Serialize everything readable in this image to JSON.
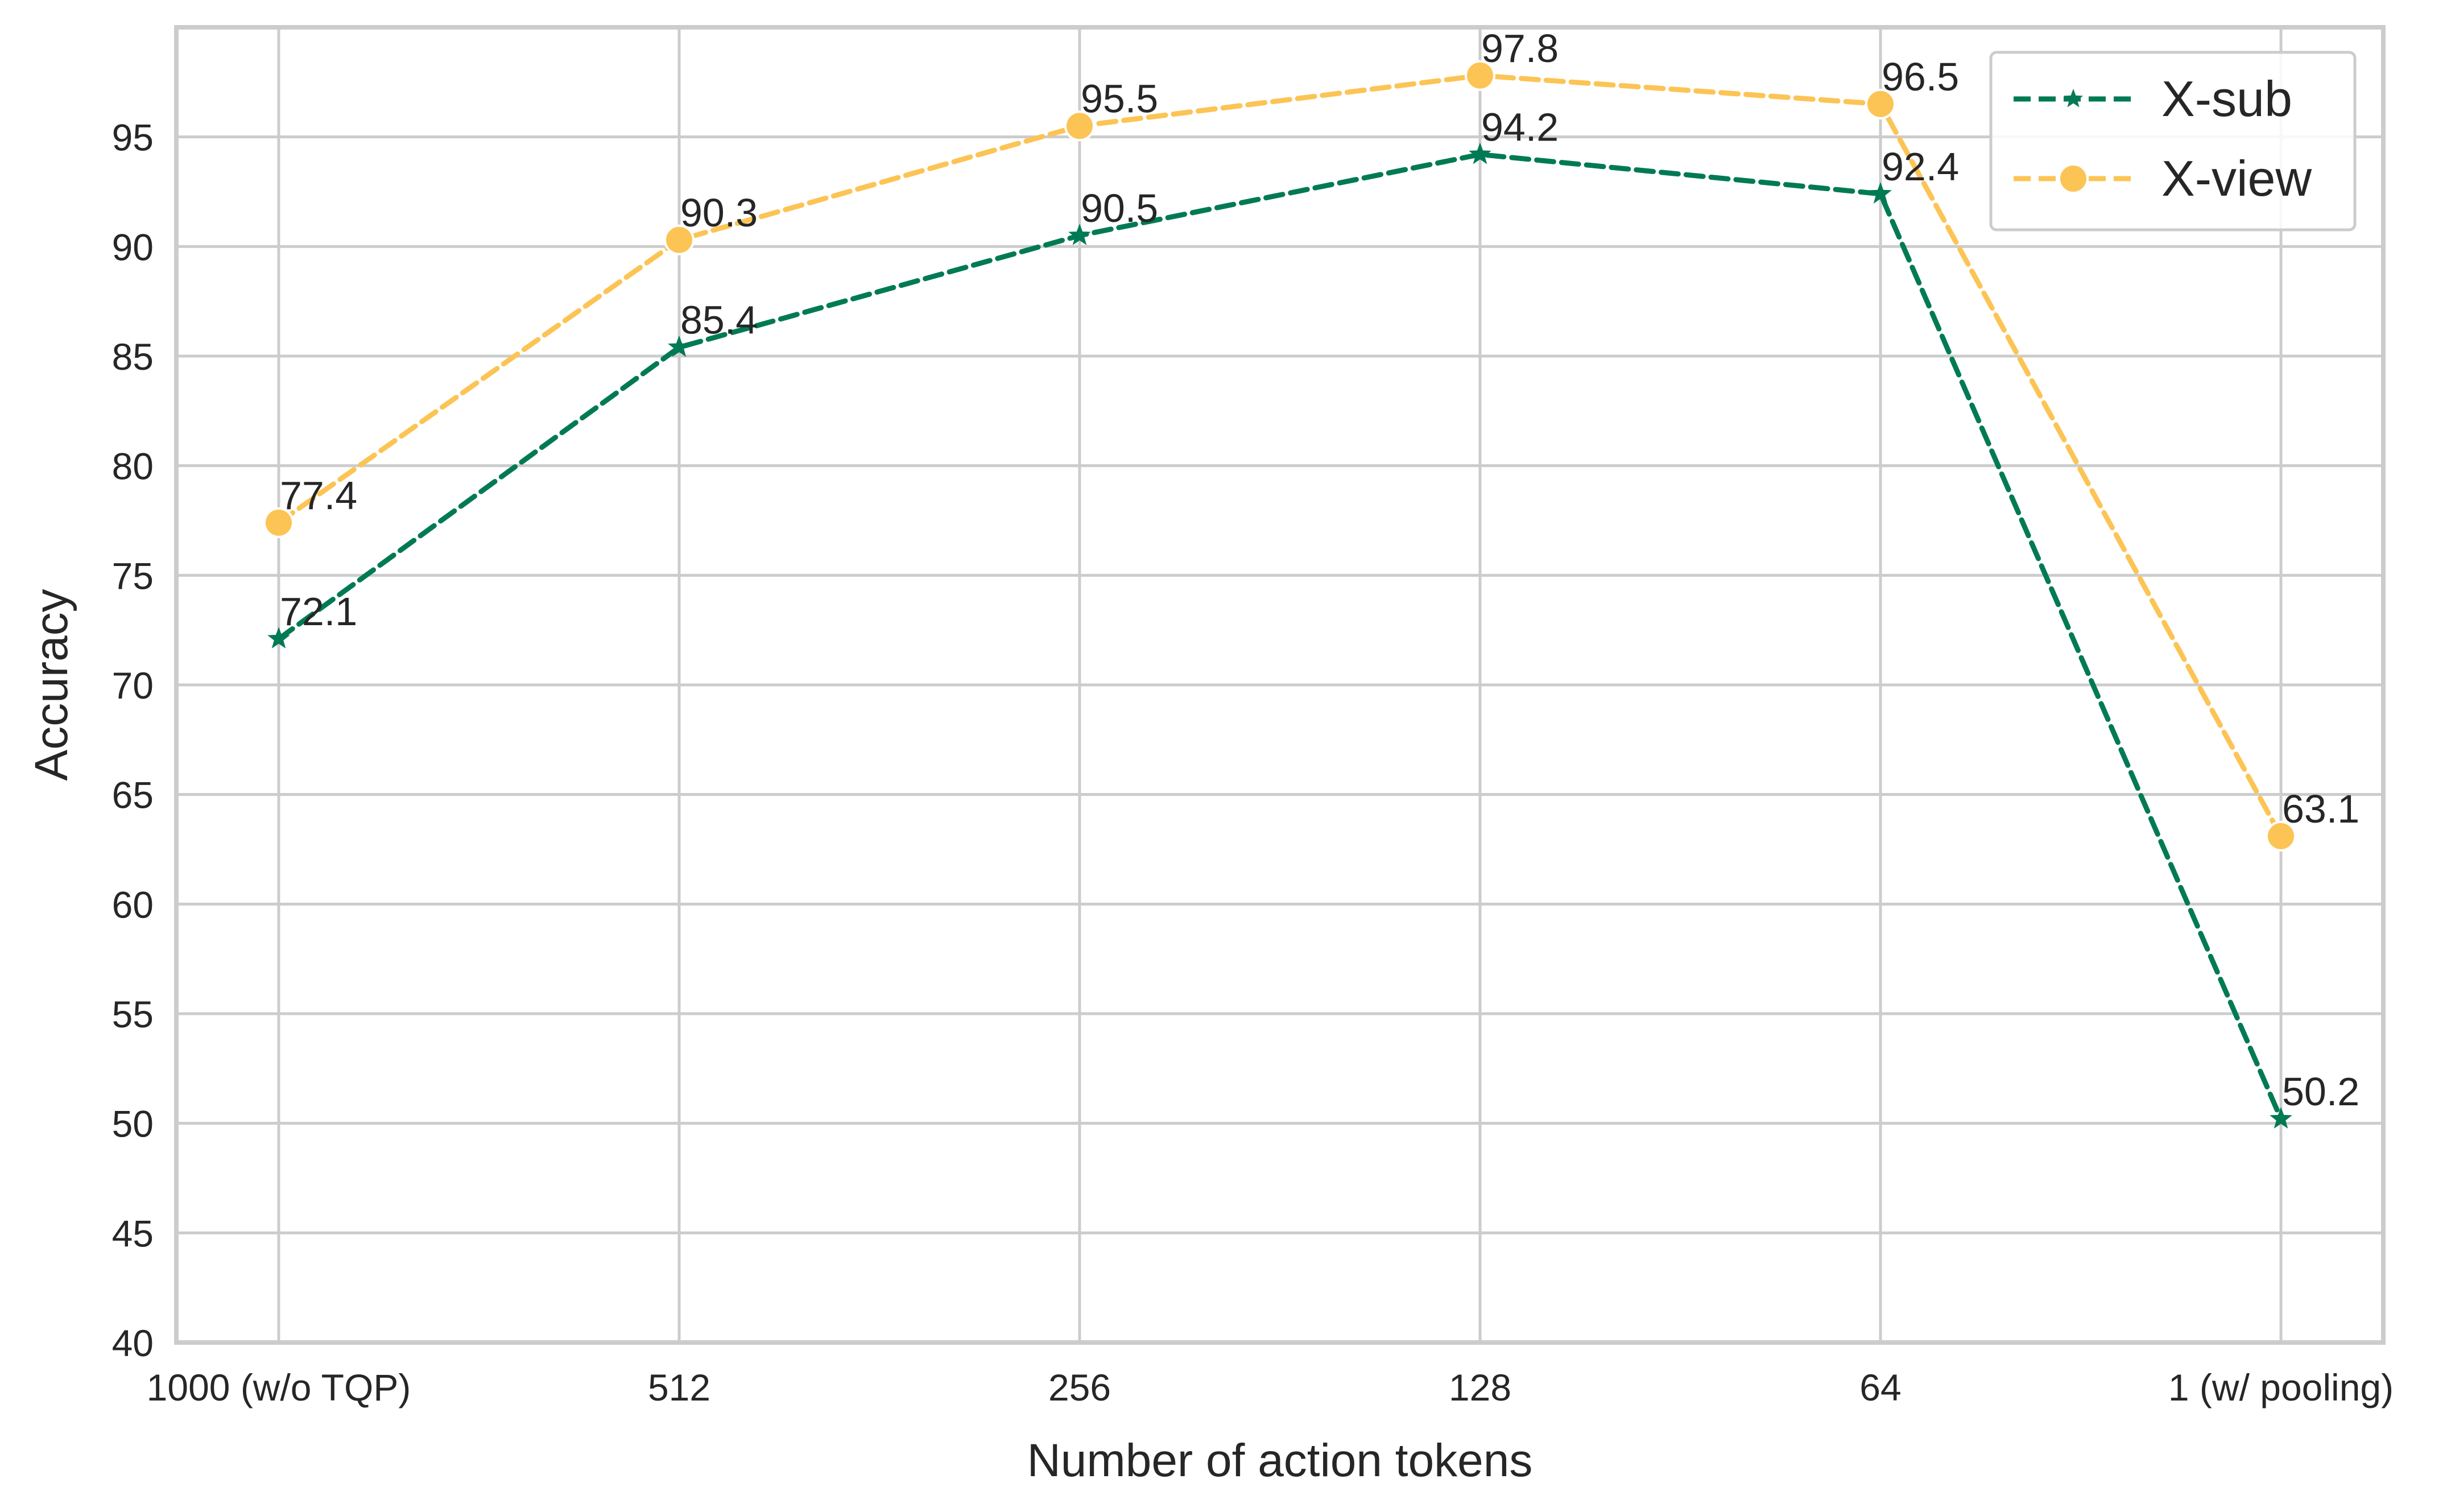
{
  "chart_data": {
    "type": "line",
    "title": "",
    "xlabel": "Number of action tokens",
    "ylabel": "Accuracy",
    "categories": [
      "1000 (w/o TQP)",
      "512",
      "256",
      "128",
      "64",
      "1 (w/ pooling)"
    ],
    "ylim": [
      40,
      100
    ],
    "yticks": [
      40,
      45,
      50,
      55,
      60,
      65,
      70,
      75,
      80,
      85,
      90,
      95
    ],
    "grid": true,
    "legend_position": "top-right",
    "series": [
      {
        "name": "X-sub",
        "values": [
          72.1,
          85.4,
          90.5,
          94.2,
          92.4,
          50.2
        ],
        "color": "#007a55",
        "marker": "star",
        "line_style": "dashed"
      },
      {
        "name": "X-view",
        "values": [
          77.4,
          90.3,
          95.5,
          97.8,
          96.5,
          63.1
        ],
        "color": "#fcc454",
        "marker": "circle",
        "line_style": "dashed"
      }
    ]
  }
}
